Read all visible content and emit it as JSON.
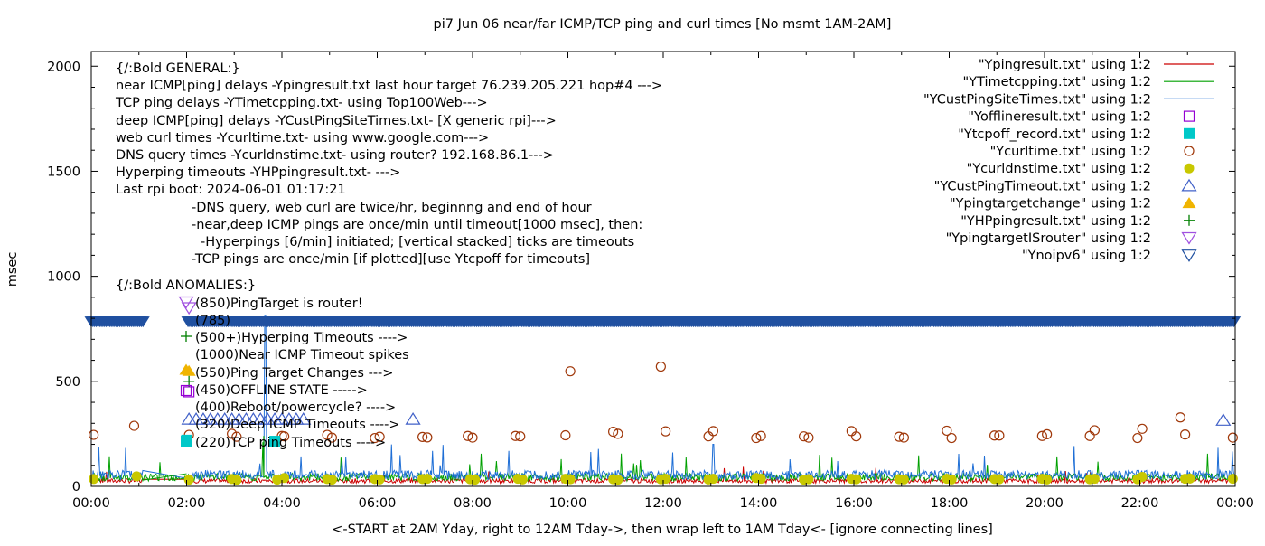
{
  "chart_data": {
    "type": "scatter",
    "title": "pi7 Jun 06  near/far ICMP/TCP ping and curl times [No msmt 1AM-2AM]",
    "xlabel": "<-START at 2AM Yday, right to 12AM Tday->, then wrap left to 1AM Tday<- [ignore connecting lines]",
    "ylabel": "msec",
    "xlim": [
      0,
      24
    ],
    "ylim": [
      0,
      2070
    ],
    "x_ticks": [
      {
        "v": 0,
        "label": "00:00"
      },
      {
        "v": 2,
        "label": "02:00"
      },
      {
        "v": 4,
        "label": "04:00"
      },
      {
        "v": 6,
        "label": "06:00"
      },
      {
        "v": 8,
        "label": "08:00"
      },
      {
        "v": 10,
        "label": "10:00"
      },
      {
        "v": 12,
        "label": "12:00"
      },
      {
        "v": 14,
        "label": "14:00"
      },
      {
        "v": 16,
        "label": "16:00"
      },
      {
        "v": 18,
        "label": "18:00"
      },
      {
        "v": 20,
        "label": "20:00"
      },
      {
        "v": 22,
        "label": "22:00"
      },
      {
        "v": 24,
        "label": "00:00"
      }
    ],
    "y_ticks": [
      {
        "v": 0,
        "label": "0"
      },
      {
        "v": 500,
        "label": "500"
      },
      {
        "v": 1000,
        "label": "1000"
      },
      {
        "v": 1500,
        "label": "1500"
      },
      {
        "v": 2000,
        "label": "2000"
      }
    ],
    "grid": false,
    "legend_position": "top-right",
    "legend": [
      {
        "label": "\"Ypingresult.txt\" using 1:2",
        "marker": "line",
        "color": "#cc0000"
      },
      {
        "label": "\"YTimetcpping.txt\" using 1:2",
        "marker": "line",
        "color": "#00a000"
      },
      {
        "label": "\"YCustPingSiteTimes.txt\" using 1:2",
        "marker": "line",
        "color": "#1f6fd6"
      },
      {
        "label": "\"Yofflineresult.txt\" using 1:2",
        "marker": "open-square",
        "color": "#9400d3"
      },
      {
        "label": "\"Ytcpoff_record.txt\" using 1:2",
        "marker": "filled-square",
        "color": "#00c8c8"
      },
      {
        "label": "\"Ycurltime.txt\" using 1:2",
        "marker": "open-circle",
        "color": "#a0380a"
      },
      {
        "label": "\"Ycurldnstime.txt\" using 1:2",
        "marker": "filled-circle",
        "color": "#c8c800"
      },
      {
        "label": "\"YCustPingTimeout.txt\" using 1:2",
        "marker": "open-triangle",
        "color": "#4060c8"
      },
      {
        "label": "\"Ypingtargetchange\" using 1:2",
        "marker": "filled-triangle",
        "color": "#f0b400"
      },
      {
        "label": "\"YHPpingresult.txt\" using 1:2",
        "marker": "plus",
        "color": "#008000"
      },
      {
        "label": "\"YpingtargetISrouter\" using 1:2",
        "marker": "open-triangle-down",
        "color": "#a050e0"
      },
      {
        "label": "\"Ynoipv6\" using 1:2",
        "marker": "open-triangle-down",
        "color": "#2050a0"
      }
    ],
    "annotations": [
      {
        "text": "{/:Bold GENERAL:}"
      },
      {
        "text": "near ICMP[ping] delays -Ypingresult.txt last hour target 76.239.205.221 hop#4 --->"
      },
      {
        "text": "TCP ping delays -YTimetcpping.txt- using Top100Web--->"
      },
      {
        "text": "deep ICMP[ping] delays -YCustPingSiteTimes.txt- [X generic rpi]--->"
      },
      {
        "text": "web curl times -Ycurltime.txt- using www.google.com--->"
      },
      {
        "text": "DNS query times -Ycurldnstime.txt- using router? 192.168.86.1--->"
      },
      {
        "text": "Hyperping timeouts -YHPpingresult.txt- --->"
      },
      {
        "text": "Last rpi boot: 2024-06-01 01:17:21"
      },
      {
        "text": "-DNS query, web curl are twice/hr, beginnng and end of hour"
      },
      {
        "text": "-near,deep ICMP pings are once/min until timeout[1000 msec], then:"
      },
      {
        "text": "-Hyperpings [6/min] initiated; [vertical stacked] ticks are timeouts"
      },
      {
        "text": "-TCP pings are once/min [if plotted][use Ytcpoff for timeouts]"
      },
      {
        "text": "{/:Bold ANOMALIES:}"
      },
      {
        "text": "(850)PingTarget is router!"
      },
      {
        "text": "(785)"
      },
      {
        "text": "(500+)Hyperping Timeouts ---->"
      },
      {
        "text": "(1000)Near ICMP Timeout spikes"
      },
      {
        "text": "(550)Ping Target Changes --->"
      },
      {
        "text": "(450)OFFLINE STATE ----->"
      },
      {
        "text": "(400)Reboot/powercycle? ---->"
      },
      {
        "text": "(320)Deep ICMP Timeouts ---->"
      },
      {
        "text": "(220)TCP ping Timeouts ---->"
      }
    ],
    "series": [
      {
        "name": "Ycurltime.txt",
        "marker": "open-circle",
        "x": [
          0.05,
          0.9,
          2.05,
          2.95,
          3.05,
          4.0,
          4.05,
          4.95,
          5.05,
          5.95,
          6.05,
          6.95,
          7.05,
          7.9,
          8.0,
          8.9,
          9.0,
          9.95,
          10.05,
          10.95,
          11.05,
          11.95,
          12.05,
          12.95,
          13.05,
          13.95,
          14.05,
          14.95,
          15.05,
          15.95,
          16.05,
          16.95,
          17.05,
          17.95,
          18.05,
          18.95,
          19.05,
          19.95,
          20.05,
          20.95,
          21.05,
          21.95,
          22.05,
          22.85,
          22.95,
          23.95
        ],
        "y": [
          245,
          288,
          245,
          250,
          236,
          240,
          238,
          245,
          232,
          230,
          236,
          235,
          233,
          240,
          232,
          240,
          238,
          243,
          548,
          260,
          250,
          570,
          262,
          238,
          263,
          230,
          240,
          238,
          232,
          263,
          238,
          236,
          232,
          265,
          230,
          242,
          242,
          240,
          248,
          240,
          267,
          230,
          274,
          328,
          247,
          232
        ]
      },
      {
        "name": "Ycurldnstime.txt",
        "marker": "filled-circle",
        "x": [
          0.05,
          0.95,
          2.05,
          2.95,
          3.05,
          3.9,
          4.05,
          4.95,
          5.05,
          5.95,
          6.05,
          6.95,
          7.05,
          7.95,
          8.05,
          8.95,
          9.05,
          9.95,
          10.05,
          10.95,
          11.05,
          11.95,
          12.05,
          12.95,
          13.05,
          13.95,
          14.05,
          14.95,
          15.05,
          15.95,
          16.05,
          16.95,
          17.05,
          17.95,
          18.05,
          18.95,
          19.05,
          19.95,
          20.05,
          20.95,
          21.05,
          21.95,
          22.05,
          22.95,
          23.05,
          23.95
        ],
        "y": [
          35,
          48,
          32,
          35,
          30,
          32,
          40,
          35,
          32,
          35,
          33,
          35,
          36,
          34,
          32,
          36,
          33,
          36,
          34,
          34,
          32,
          34,
          36,
          33,
          36,
          40,
          36,
          32,
          34,
          36,
          34,
          34,
          33,
          36,
          33,
          35,
          34,
          36,
          33,
          34,
          36,
          34,
          45,
          36,
          37,
          36
        ]
      },
      {
        "name": "YCustPingTimeout.txt",
        "marker": "open-triangle",
        "x": [
          2.05,
          2.2,
          2.35,
          2.5,
          2.65,
          2.8,
          2.95,
          3.1,
          3.25,
          3.4,
          3.55,
          3.7,
          3.85,
          4.0,
          4.15,
          4.3,
          4.45,
          6.75,
          23.75
        ],
        "y": [
          320,
          320,
          320,
          320,
          320,
          320,
          320,
          320,
          320,
          320,
          320,
          320,
          320,
          320,
          320,
          320,
          320,
          320,
          315
        ]
      },
      {
        "name": "Ytcpoff_record.txt",
        "marker": "filled-square",
        "x": [
          2.0,
          3.85
        ],
        "y": [
          220,
          215
        ]
      },
      {
        "name": "Ypingtargetchange",
        "marker": "filled-triangle",
        "x": [
          2.05
        ],
        "y": [
          550
        ]
      },
      {
        "name": "Yofflineresult.txt",
        "marker": "open-square",
        "x": [
          2.05
        ],
        "y": [
          450
        ]
      },
      {
        "name": "YHPpingresult.txt",
        "marker": "plus",
        "x": [
          2.05
        ],
        "y": [
          500
        ]
      },
      {
        "name": "YpingtargetISrouter",
        "marker": "open-triangle-down",
        "x": [
          2.05
        ],
        "y": [
          850
        ]
      },
      {
        "name": "Ynoipv6",
        "marker": "filled-triangle-down",
        "x_start": 0,
        "x_end": 24,
        "y": 785,
        "gap": [
          1.1,
          2.0
        ]
      },
      {
        "name": "Ypingresult.txt",
        "marker": "line",
        "baseline": 24
      },
      {
        "name": "YTimetcpping.txt",
        "marker": "line",
        "baseline": 40,
        "spike_x": [
          3.6
        ],
        "spike_y": [
          210
        ]
      },
      {
        "name": "YCustPingSiteTimes.txt",
        "marker": "line",
        "baseline": 50,
        "spike_x": [
          3.65,
          13.05,
          18.2
        ],
        "spike_y": [
          810,
          200,
          155
        ]
      }
    ]
  }
}
